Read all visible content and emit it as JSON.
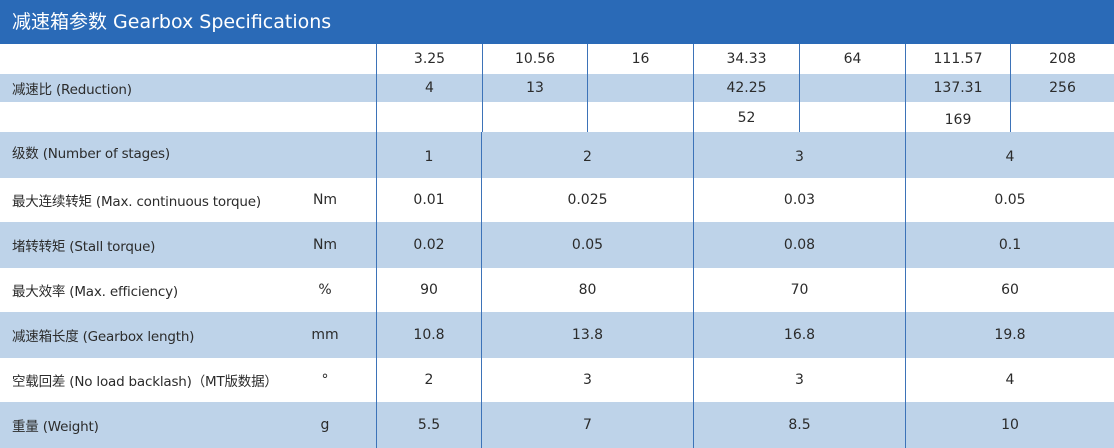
{
  "title": "减速箱参数 Gearbox Specifications",
  "reduction": {
    "label": "减速比 (Reduction)",
    "row1": [
      "3.25",
      "10.56",
      "16",
      "34.33",
      "64",
      "111.57",
      "208"
    ],
    "row2": [
      "4",
      "13",
      "42.25",
      "137.31",
      "256"
    ],
    "row3": [
      "52",
      "169"
    ]
  },
  "rows": [
    {
      "label": "级数 (Number of stages)",
      "unit": "",
      "values": [
        "1",
        "2",
        "3",
        "4"
      ]
    },
    {
      "label": "最大连续转矩 (Max. continuous torque)",
      "unit": "Nm",
      "values": [
        "0.01",
        "0.025",
        "0.03",
        "0.05"
      ]
    },
    {
      "label": "堵转转矩 (Stall torque)",
      "unit": "Nm",
      "values": [
        "0.02",
        "0.05",
        "0.08",
        "0.1"
      ]
    },
    {
      "label": "最大效率 (Max. efficiency)",
      "unit": "%",
      "values": [
        "90",
        "80",
        "70",
        "60"
      ]
    },
    {
      "label": "减速箱长度 (Gearbox length)",
      "unit": "mm",
      "values": [
        "10.8",
        "13.8",
        "16.8",
        "19.8"
      ]
    },
    {
      "label": "空载回差 (No load backlash)（MT版数据）",
      "unit": "°",
      "values": [
        "2",
        "3",
        "3",
        "4"
      ]
    },
    {
      "label": "重量 (Weight)",
      "unit": "g",
      "values": [
        "5.5",
        "7",
        "8.5",
        "10"
      ]
    }
  ],
  "colors": {
    "header": "#2a6ab7",
    "band": "#bed3e9",
    "rule": "#3d73b8"
  }
}
